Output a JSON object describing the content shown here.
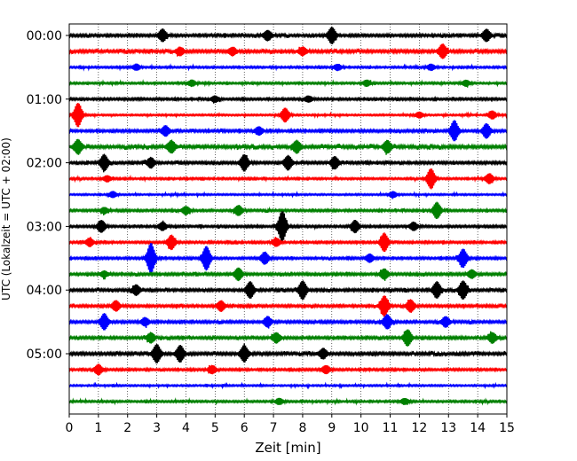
{
  "chart_data": {
    "type": "line",
    "title": "",
    "xlabel": "Zeit  [min]",
    "ylabel": "UTC (Lokalzeit = UTC + 02:00)",
    "xlim": [
      0,
      15
    ],
    "x_ticks": [
      "0",
      "1",
      "2",
      "3",
      "4",
      "5",
      "6",
      "7",
      "8",
      "9",
      "10",
      "11",
      "12",
      "13",
      "14",
      "15"
    ],
    "y_tick_labels": [
      "00:00",
      "01:00",
      "02:00",
      "03:00",
      "04:00",
      "05:00"
    ],
    "traces_per_hour": 4,
    "trace_minutes": 15,
    "grid": "vertical dotted at each minute",
    "trace_colors": [
      "#000000",
      "#ff0000",
      "#0000ff",
      "#008000"
    ],
    "series": [
      {
        "start": "00:00",
        "color": "#000000",
        "level": 0.45,
        "events": [
          [
            3.2,
            0.6
          ],
          [
            9.0,
            0.8
          ],
          [
            14.3,
            0.6
          ],
          [
            6.8,
            0.5
          ]
        ]
      },
      {
        "start": "00:15",
        "color": "#ff0000",
        "level": 0.5,
        "events": [
          [
            3.8,
            0.4
          ],
          [
            5.6,
            0.4
          ],
          [
            8.0,
            0.4
          ],
          [
            12.8,
            0.7
          ]
        ]
      },
      {
        "start": "00:30",
        "color": "#0000ff",
        "level": 0.35,
        "events": [
          [
            2.3,
            0.3
          ],
          [
            9.2,
            0.3
          ],
          [
            12.4,
            0.3
          ]
        ]
      },
      {
        "start": "00:45",
        "color": "#008000",
        "level": 0.35,
        "events": [
          [
            4.2,
            0.3
          ],
          [
            10.2,
            0.3
          ],
          [
            13.6,
            0.3
          ]
        ]
      },
      {
        "start": "01:00",
        "color": "#000000",
        "level": 0.4,
        "events": [
          [
            5.0,
            0.3
          ],
          [
            8.2,
            0.3
          ]
        ]
      },
      {
        "start": "01:15",
        "color": "#ff0000",
        "level": 0.3,
        "events": [
          [
            0.3,
            1.2
          ],
          [
            7.4,
            0.7
          ],
          [
            12.0,
            0.3
          ],
          [
            14.5,
            0.4
          ]
        ]
      },
      {
        "start": "01:30",
        "color": "#0000ff",
        "level": 0.45,
        "events": [
          [
            3.3,
            0.5
          ],
          [
            6.5,
            0.4
          ],
          [
            13.2,
            1.0
          ],
          [
            14.3,
            0.7
          ]
        ]
      },
      {
        "start": "01:45",
        "color": "#008000",
        "level": 0.55,
        "events": [
          [
            0.3,
            0.7
          ],
          [
            3.5,
            0.6
          ],
          [
            7.8,
            0.6
          ],
          [
            10.9,
            0.6
          ]
        ]
      },
      {
        "start": "02:00",
        "color": "#000000",
        "level": 0.45,
        "events": [
          [
            1.2,
            0.8
          ],
          [
            2.8,
            0.5
          ],
          [
            6.0,
            0.8
          ],
          [
            7.5,
            0.7
          ],
          [
            9.1,
            0.6
          ]
        ]
      },
      {
        "start": "02:15",
        "color": "#ff0000",
        "level": 0.35,
        "events": [
          [
            1.3,
            0.3
          ],
          [
            12.4,
            1.0
          ],
          [
            14.4,
            0.5
          ]
        ]
      },
      {
        "start": "02:30",
        "color": "#0000ff",
        "level": 0.3,
        "events": [
          [
            1.5,
            0.3
          ],
          [
            11.1,
            0.3
          ]
        ]
      },
      {
        "start": "02:45",
        "color": "#008000",
        "level": 0.4,
        "events": [
          [
            1.2,
            0.3
          ],
          [
            4.0,
            0.4
          ],
          [
            5.8,
            0.5
          ],
          [
            12.6,
            0.8
          ]
        ]
      },
      {
        "start": "03:00",
        "color": "#000000",
        "level": 0.4,
        "events": [
          [
            1.1,
            0.6
          ],
          [
            3.2,
            0.4
          ],
          [
            7.3,
            1.5
          ],
          [
            9.8,
            0.6
          ],
          [
            11.8,
            0.4
          ]
        ]
      },
      {
        "start": "03:15",
        "color": "#ff0000",
        "level": 0.4,
        "events": [
          [
            0.7,
            0.4
          ],
          [
            3.5,
            0.7
          ],
          [
            7.1,
            0.4
          ],
          [
            10.8,
            0.9
          ]
        ]
      },
      {
        "start": "03:30",
        "color": "#0000ff",
        "level": 0.4,
        "events": [
          [
            2.8,
            1.5
          ],
          [
            4.7,
            1.2
          ],
          [
            6.7,
            0.6
          ],
          [
            10.3,
            0.4
          ],
          [
            13.5,
            0.9
          ]
        ]
      },
      {
        "start": "03:45",
        "color": "#008000",
        "level": 0.45,
        "events": [
          [
            1.2,
            0.3
          ],
          [
            5.8,
            0.6
          ],
          [
            10.8,
            0.5
          ],
          [
            13.8,
            0.4
          ]
        ]
      },
      {
        "start": "04:00",
        "color": "#000000",
        "level": 0.45,
        "events": [
          [
            2.3,
            0.5
          ],
          [
            6.2,
            0.8
          ],
          [
            8.0,
            0.9
          ],
          [
            12.6,
            0.8
          ],
          [
            13.5,
            0.9
          ]
        ]
      },
      {
        "start": "04:15",
        "color": "#ff0000",
        "level": 0.45,
        "events": [
          [
            1.6,
            0.5
          ],
          [
            5.2,
            0.5
          ],
          [
            10.8,
            1.0
          ],
          [
            11.7,
            0.6
          ]
        ]
      },
      {
        "start": "04:30",
        "color": "#0000ff",
        "level": 0.45,
        "events": [
          [
            1.2,
            0.8
          ],
          [
            2.6,
            0.4
          ],
          [
            6.8,
            0.5
          ],
          [
            10.9,
            0.7
          ],
          [
            12.9,
            0.5
          ]
        ]
      },
      {
        "start": "04:45",
        "color": "#008000",
        "level": 0.45,
        "events": [
          [
            2.8,
            0.5
          ],
          [
            7.1,
            0.5
          ],
          [
            11.6,
            0.8
          ],
          [
            14.5,
            0.5
          ]
        ]
      },
      {
        "start": "05:00",
        "color": "#000000",
        "level": 0.5,
        "events": [
          [
            3.0,
            0.9
          ],
          [
            3.8,
            0.8
          ],
          [
            6.0,
            0.8
          ],
          [
            8.7,
            0.5
          ]
        ]
      },
      {
        "start": "05:15",
        "color": "#ff0000",
        "level": 0.4,
        "events": [
          [
            1.0,
            0.5
          ],
          [
            4.9,
            0.4
          ],
          [
            8.8,
            0.4
          ]
        ]
      },
      {
        "start": "05:30",
        "color": "#0000ff",
        "level": 0.3,
        "events": []
      },
      {
        "start": "05:45",
        "color": "#008000",
        "level": 0.35,
        "events": [
          [
            7.2,
            0.3
          ],
          [
            11.5,
            0.3
          ]
        ]
      }
    ]
  }
}
